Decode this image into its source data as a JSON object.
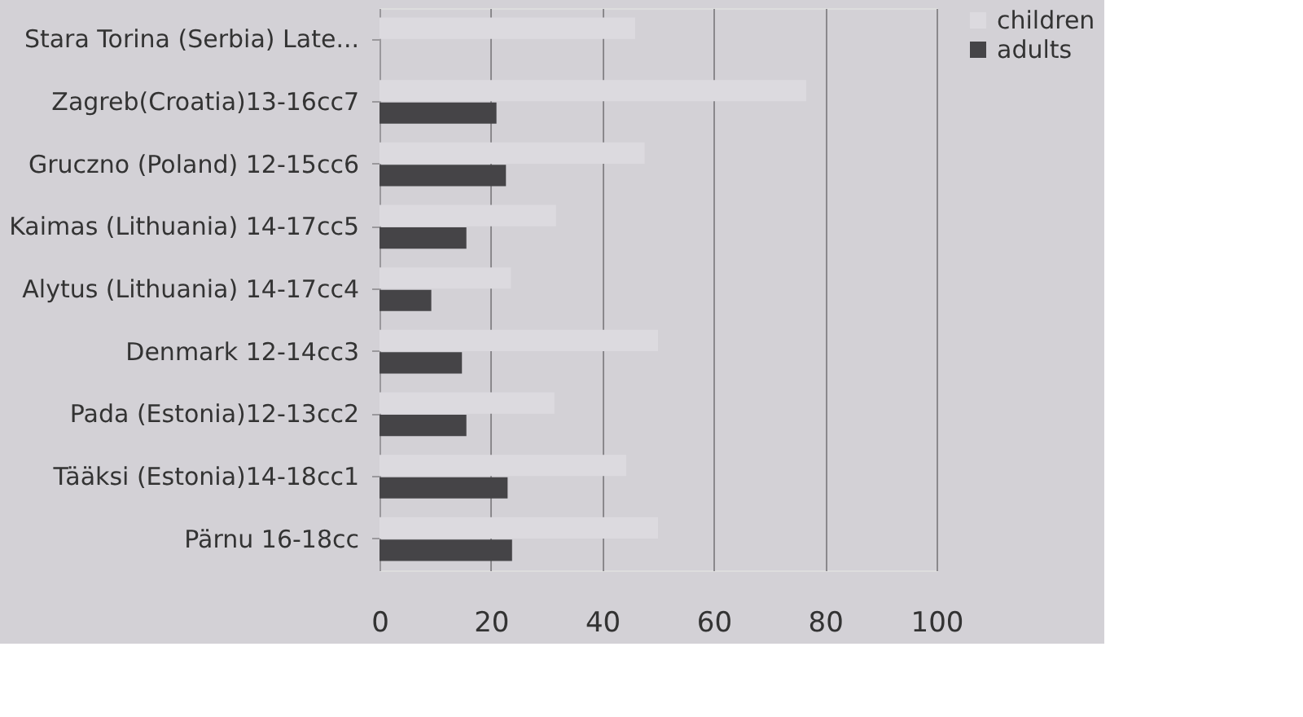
{
  "chart_data": {
    "type": "bar",
    "orientation": "horizontal",
    "categories": [
      "Stara Torina (Serbia)  Late...",
      "Zagreb(Croatia)13-16cc7",
      "Gruczno (Poland) 12-15cc6",
      "Kaimas (Lithuania) 14-17cc5",
      "Alytus (Lithuania) 14-17cc4",
      "Denmark 12-14cc3",
      "Pada (Estonia)12-13cc2",
      "Tääksi (Estonia)14-18cc1",
      "Pärnu 16-18cc"
    ],
    "series": [
      {
        "name": "children",
        "color": "#dcdadf",
        "values": [
          45.9,
          76.6,
          47.6,
          31.7,
          23.6,
          50,
          31.4,
          44.3,
          50
        ]
      },
      {
        "name": "adults",
        "color": "#454447",
        "values": [
          null,
          21,
          22.7,
          15.6,
          9.3,
          14.8,
          15.6,
          23,
          23.8
        ]
      }
    ],
    "xlim": [
      0,
      100
    ],
    "xticks": [
      0,
      20,
      40,
      60,
      80,
      100
    ],
    "grid": "x",
    "legend": "right"
  }
}
